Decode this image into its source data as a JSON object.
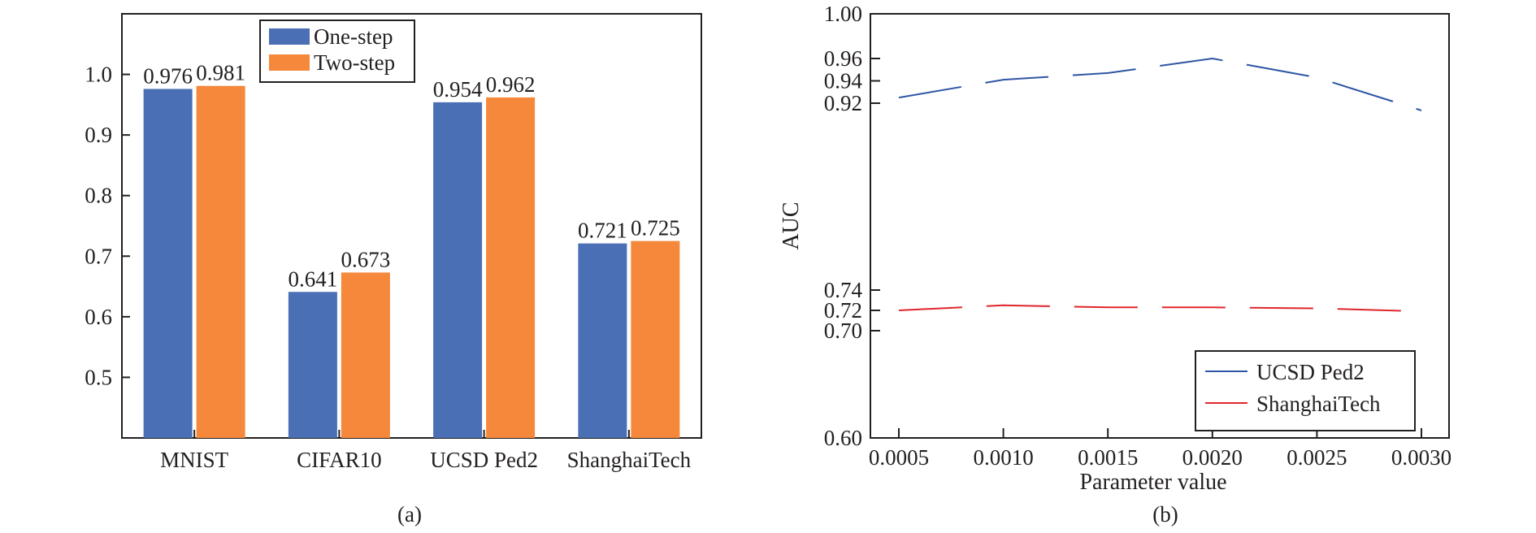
{
  "chart_data": [
    {
      "type": "bar",
      "caption": "(a)",
      "categories": [
        "MNIST",
        "CIFAR10",
        "UCSD Ped2",
        "ShanghaiTech"
      ],
      "series": [
        {
          "name": "One-step",
          "color": "#4a6fb5",
          "values": [
            0.976,
            0.641,
            0.954,
            0.721
          ],
          "labels": [
            "0.976",
            "0.641",
            "0.954",
            "0.721"
          ]
        },
        {
          "name": "Two-step",
          "color": "#f5883a",
          "values": [
            0.981,
            0.673,
            0.962,
            0.725
          ],
          "labels": [
            "0.981",
            "0.673",
            "0.962",
            "0.725"
          ]
        }
      ],
      "yticks": [
        "0.5",
        "0.6",
        "0.7",
        "0.8",
        "0.9",
        "1.0"
      ],
      "ylim": [
        0.4,
        1.1
      ],
      "legend": "top-center",
      "grid": false
    },
    {
      "type": "line",
      "caption": "(b)",
      "xlabel": "Parameter value",
      "ylabel": "AUC",
      "x": [
        0.0005,
        0.001,
        0.0015,
        0.002,
        0.0025,
        0.003
      ],
      "xticks": [
        "0.0005",
        "0.0010",
        "0.0015",
        "0.0020",
        "0.0025",
        "0.0030"
      ],
      "yticks": [
        "0.60",
        "0.70",
        "0.72",
        "0.74",
        "0.92",
        "0.94",
        "0.96",
        "1.00"
      ],
      "y_scale": "piecewise (0.60–0.74 and 0.92–1.00 stretched)",
      "series": [
        {
          "name": "UCSD Ped2",
          "color": "#2e55a4",
          "dash": "long-dash",
          "values": [
            0.925,
            0.941,
            0.947,
            0.96,
            0.943,
            0.913
          ]
        },
        {
          "name": "ShanghaiTech",
          "color": "#e0262b",
          "dash": "long-dash",
          "values": [
            0.72,
            0.725,
            0.723,
            0.723,
            0.722,
            0.719
          ]
        }
      ],
      "legend": "bottom-right",
      "grid": false
    }
  ]
}
